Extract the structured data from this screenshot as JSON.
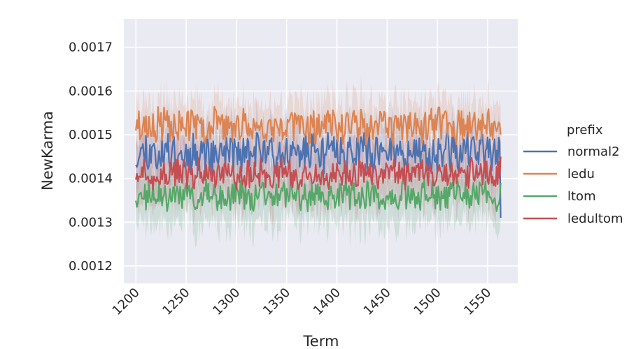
{
  "chart_data": {
    "type": "line",
    "xlabel": "Term",
    "ylabel": "NewKarma",
    "xlim": [
      1188,
      1580
    ],
    "ylim": [
      0.00116,
      0.001765
    ],
    "x_ticks": [
      1200,
      1250,
      1300,
      1350,
      1400,
      1450,
      1500,
      1550
    ],
    "x_tick_labels": [
      "1200",
      "1250",
      "1300",
      "1350",
      "1400",
      "1450",
      "1500",
      "1550"
    ],
    "y_ticks": [
      0.0012,
      0.0013,
      0.0014,
      0.0015,
      0.0016,
      0.0017
    ],
    "y_tick_labels": [
      "0.0012",
      "0.0013",
      "0.0014",
      "0.0015",
      "0.0016",
      "0.0017"
    ],
    "grid": true,
    "background": "#eaeaf2",
    "confidence_band": true,
    "legend": {
      "title": "prefix",
      "placement": "right"
    },
    "x_start": 1200,
    "x_end": 1563,
    "series": [
      {
        "name": "normal2",
        "color": "#4c72b0",
        "mean": 0.00146,
        "noise": 4e-05,
        "band": 6e-05,
        "end_value": 0.00131
      },
      {
        "name": "ledu",
        "color": "#dd8452",
        "mean": 0.00152,
        "noise": 3.5e-05,
        "band": 6e-05,
        "end_value": 0.0015
      },
      {
        "name": "ltom",
        "color": "#55a868",
        "mean": 0.00136,
        "noise": 3e-05,
        "band": 7e-05,
        "end_value": 0.00139
      },
      {
        "name": "ledultom",
        "color": "#c44e52",
        "mean": 0.00141,
        "noise": 3e-05,
        "band": 7e-05,
        "end_value": 0.00145
      }
    ]
  }
}
